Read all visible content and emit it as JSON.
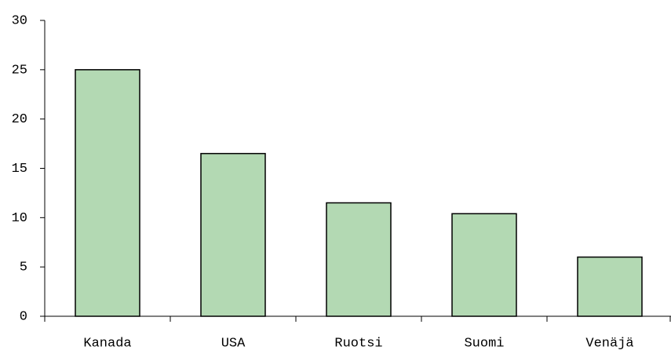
{
  "chart_data": {
    "type": "bar",
    "categories": [
      "Kanada",
      "USA",
      "Ruotsi",
      "Suomi",
      "Venäjä"
    ],
    "values": [
      25,
      16.5,
      11.5,
      10.4,
      6
    ],
    "color": "#b3d9b3",
    "ylim": [
      0,
      30
    ],
    "yticks": [
      0,
      5,
      10,
      15,
      20,
      25,
      30
    ],
    "grid": false
  }
}
